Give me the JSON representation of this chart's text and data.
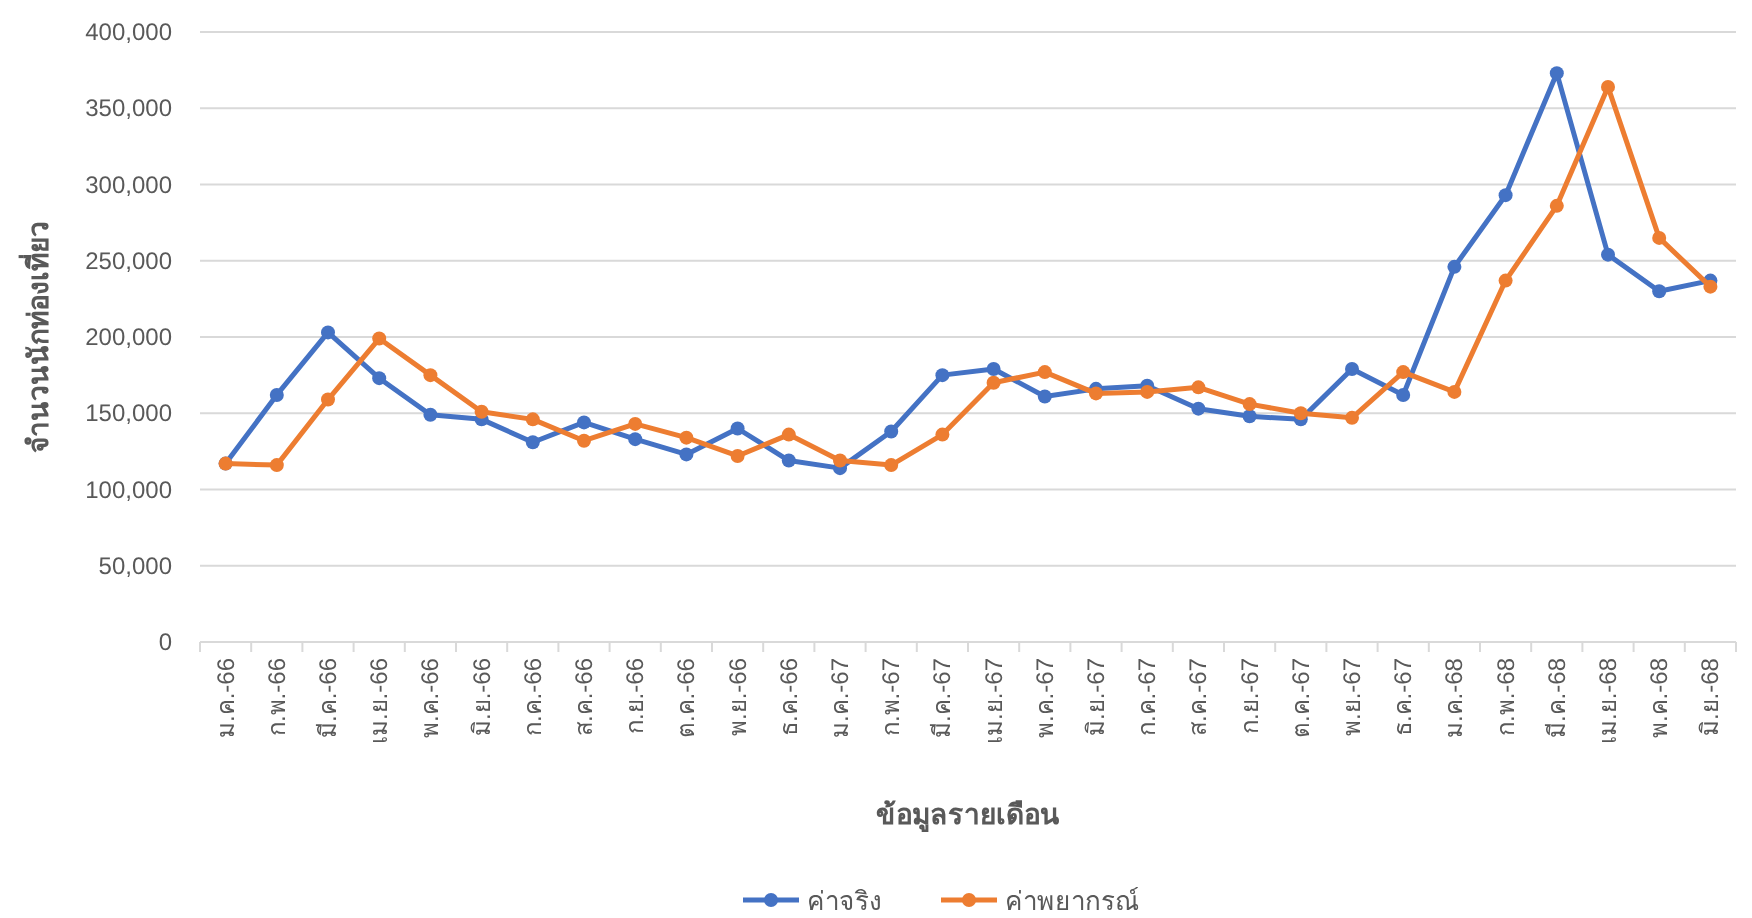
{
  "chart_data": {
    "type": "line",
    "categories": [
      "ม.ค.-66",
      "ก.พ.-66",
      "มี.ค.-66",
      "เม.ย.-66",
      "พ.ค.-66",
      "มิ.ย.-66",
      "ก.ค.-66",
      "ส.ค.-66",
      "ก.ย.-66",
      "ต.ค.-66",
      "พ.ย.-66",
      "ธ.ค.-66",
      "ม.ค.-67",
      "ก.พ.-67",
      "มี.ค.-67",
      "เม.ย.-67",
      "พ.ค.-67",
      "มิ.ย.-67",
      "ก.ค.-67",
      "ส.ค.-67",
      "ก.ย.-67",
      "ต.ค.-67",
      "พ.ย.-67",
      "ธ.ค.-67",
      "ม.ค.-68",
      "ก.พ.-68",
      "มี.ค.-68",
      "เม.ย.-68",
      "พ.ค.-68",
      "มิ.ย.-68"
    ],
    "series": [
      {
        "name": "ค่าจริง",
        "color": "#4472c4",
        "values": [
          117000,
          162000,
          203000,
          173000,
          149000,
          146000,
          131000,
          144000,
          133000,
          123000,
          140000,
          119000,
          114000,
          138000,
          175000,
          179000,
          161000,
          166000,
          168000,
          153000,
          148000,
          146000,
          179000,
          162000,
          246000,
          293000,
          373000,
          254000,
          230000,
          237000
        ]
      },
      {
        "name": "ค่าพยากรณ์",
        "color": "#ed7d31",
        "values": [
          117000,
          116000,
          159000,
          199000,
          175000,
          151000,
          146000,
          132000,
          143000,
          134000,
          122000,
          136000,
          119000,
          116000,
          136000,
          170000,
          177000,
          163000,
          164000,
          167000,
          156000,
          150000,
          147000,
          177000,
          164000,
          237000,
          286000,
          364000,
          265000,
          233000
        ]
      }
    ],
    "xlabel": "ข้อมูลรายเดือน",
    "ylabel": "จำนวนนักท่องเที่ยว",
    "ylim": [
      0,
      400000
    ],
    "yticks": [
      {
        "value": 0,
        "label": "0"
      },
      {
        "value": 50000,
        "label": "50,000"
      },
      {
        "value": 100000,
        "label": "100,000"
      },
      {
        "value": 150000,
        "label": "150,000"
      },
      {
        "value": 200000,
        "label": "200,000"
      },
      {
        "value": 250000,
        "label": "250,000"
      },
      {
        "value": 300000,
        "label": "300,000"
      },
      {
        "value": 350000,
        "label": "350,000"
      },
      {
        "value": 400000,
        "label": "400,000"
      }
    ],
    "grid": "y",
    "legend": "bottom",
    "marker": "circle",
    "line_style": "solid"
  }
}
